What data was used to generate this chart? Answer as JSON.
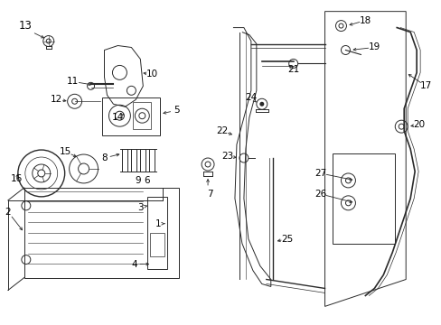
{
  "bg_color": "#ffffff",
  "line_color": "#2a2a2a",
  "text_color": "#000000",
  "fig_width": 4.89,
  "fig_height": 3.6,
  "dpi": 100
}
